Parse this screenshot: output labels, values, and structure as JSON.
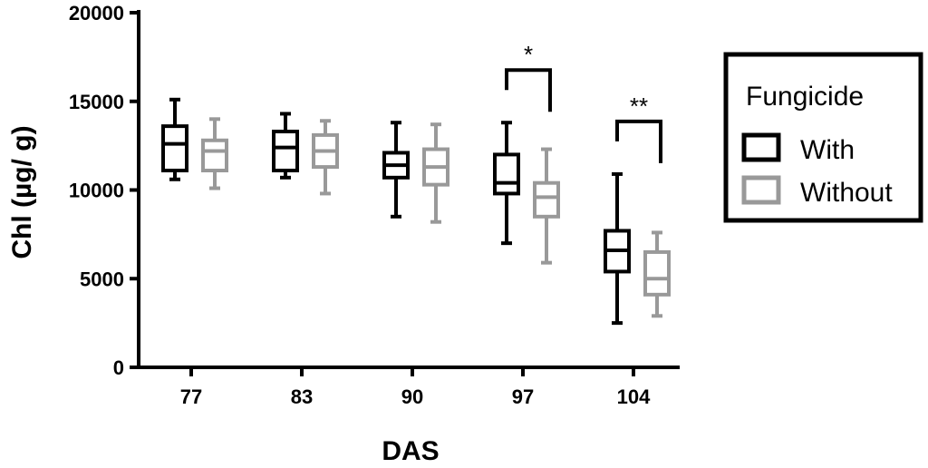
{
  "chart_data": {
    "type": "box",
    "title": "",
    "xlabel": "DAS",
    "ylabel": "Chl (µg/ g)",
    "ylim": [
      0,
      20000
    ],
    "yticks": [
      0,
      5000,
      10000,
      15000,
      20000
    ],
    "categories": [
      "77",
      "83",
      "90",
      "97",
      "104"
    ],
    "grid": false,
    "legend": {
      "title": "Fungicide",
      "position": "right"
    },
    "series": [
      {
        "name": "With",
        "color": "#000000",
        "boxes": [
          {
            "min": 10600,
            "q1": 11100,
            "median": 12600,
            "q3": 13600,
            "max": 15100
          },
          {
            "min": 10700,
            "q1": 11100,
            "median": 12400,
            "q3": 13300,
            "max": 14300
          },
          {
            "min": 8500,
            "q1": 10700,
            "median": 11400,
            "q3": 12100,
            "max": 13800
          },
          {
            "min": 7000,
            "q1": 9800,
            "median": 10400,
            "q3": 12000,
            "max": 13800
          },
          {
            "min": 2500,
            "q1": 5400,
            "median": 6600,
            "q3": 7700,
            "max": 10900
          }
        ]
      },
      {
        "name": "Without",
        "color": "#999999",
        "boxes": [
          {
            "min": 10100,
            "q1": 11100,
            "median": 12200,
            "q3": 12800,
            "max": 14000
          },
          {
            "min": 9800,
            "q1": 11300,
            "median": 12200,
            "q3": 13100,
            "max": 13900
          },
          {
            "min": 8200,
            "q1": 10300,
            "median": 11300,
            "q3": 12300,
            "max": 13700
          },
          {
            "min": 5900,
            "q1": 8500,
            "median": 9600,
            "q3": 10400,
            "max": 12300
          },
          {
            "min": 2900,
            "q1": 4100,
            "median": 5000,
            "q3": 6500,
            "max": 7600
          }
        ]
      }
    ],
    "annotations": [
      {
        "category": "97",
        "text": "*"
      },
      {
        "category": "104",
        "text": "**"
      }
    ]
  }
}
